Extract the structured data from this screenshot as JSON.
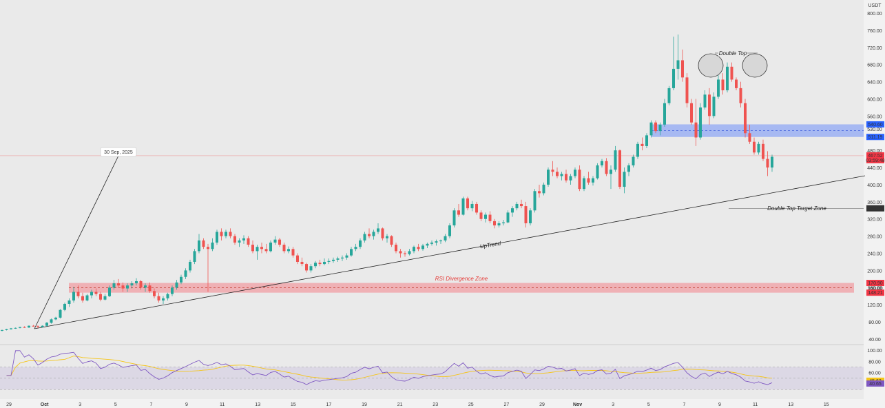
{
  "currency": "USDT",
  "colors": {
    "up": "#26a69a",
    "down": "#ef5350",
    "blue_zone": "#6f8ff7",
    "red_zone": "#f28b91",
    "rsi_line": "#7e57c2",
    "rsi_ma": "#f5c518",
    "background": "#eaeaea"
  },
  "chart_data": [
    {
      "type": "candlestick",
      "ylim": [
        20,
        820
      ],
      "y_ticks": [
        "800.00",
        "760.00",
        "720.00",
        "680.00",
        "640.00",
        "600.00",
        "560.00",
        "530.00",
        "480.00",
        "440.00",
        "400.00",
        "360.00",
        "320.00",
        "280.00",
        "240.00",
        "200.00",
        "160.00",
        "120.00",
        "80.00",
        "40.00"
      ],
      "x_ticks": [
        "29",
        "Oct",
        "3",
        "5",
        "7",
        "9",
        "11",
        "13",
        "15",
        "17",
        "19",
        "21",
        "23",
        "25",
        "27",
        "29",
        "Nov",
        "3",
        "5",
        "7",
        "9",
        "11",
        "13",
        "15"
      ],
      "candles_ohlc": [
        [
          60,
          62,
          58,
          61
        ],
        [
          61,
          64,
          60,
          63
        ],
        [
          63,
          66,
          62,
          65
        ],
        [
          65,
          67,
          64,
          66
        ],
        [
          66,
          69,
          65,
          68
        ],
        [
          68,
          70,
          66,
          67
        ],
        [
          67,
          72,
          66,
          71
        ],
        [
          71,
          73,
          69,
          70
        ],
        [
          70,
          72,
          66,
          68
        ],
        [
          68,
          72,
          67,
          71
        ],
        [
          71,
          80,
          70,
          78
        ],
        [
          78,
          88,
          76,
          86
        ],
        [
          86,
          92,
          84,
          90
        ],
        [
          90,
          110,
          88,
          108
        ],
        [
          108,
          125,
          105,
          122
        ],
        [
          122,
          135,
          115,
          130
        ],
        [
          130,
          162,
          125,
          150
        ],
        [
          150,
          165,
          135,
          140
        ],
        [
          140,
          148,
          125,
          130
        ],
        [
          130,
          145,
          128,
          142
        ],
        [
          142,
          155,
          135,
          150
        ],
        [
          150,
          158,
          140,
          145
        ],
        [
          145,
          150,
          128,
          132
        ],
        [
          132,
          145,
          130,
          140
        ],
        [
          140,
          165,
          138,
          160
        ],
        [
          160,
          178,
          155,
          170
        ],
        [
          170,
          180,
          160,
          165
        ],
        [
          165,
          172,
          150,
          158
        ],
        [
          158,
          170,
          150,
          165
        ],
        [
          165,
          175,
          158,
          170
        ],
        [
          170,
          182,
          165,
          175
        ],
        [
          175,
          178,
          155,
          160
        ],
        [
          160,
          170,
          150,
          165
        ],
        [
          165,
          172,
          148,
          152
        ],
        [
          152,
          158,
          135,
          140
        ],
        [
          140,
          148,
          125,
          130
        ],
        [
          130,
          140,
          122,
          135
        ],
        [
          135,
          148,
          130,
          145
        ],
        [
          145,
          165,
          140,
          160
        ],
        [
          160,
          178,
          155,
          172
        ],
        [
          172,
          190,
          168,
          185
        ],
        [
          185,
          205,
          180,
          200
        ],
        [
          200,
          225,
          195,
          220
        ],
        [
          220,
          250,
          215,
          245
        ],
        [
          245,
          285,
          240,
          270
        ],
        [
          270,
          275,
          250,
          255
        ],
        [
          255,
          262,
          150,
          250
        ],
        [
          250,
          275,
          245,
          265
        ],
        [
          265,
          295,
          260,
          290
        ],
        [
          290,
          298,
          270,
          280
        ],
        [
          280,
          295,
          275,
          290
        ],
        [
          290,
          298,
          275,
          280
        ],
        [
          280,
          285,
          260,
          265
        ],
        [
          265,
          275,
          255,
          270
        ],
        [
          270,
          282,
          262,
          275
        ],
        [
          275,
          280,
          255,
          260
        ],
        [
          260,
          270,
          240,
          245
        ],
        [
          245,
          260,
          225,
          255
        ],
        [
          255,
          265,
          240,
          250
        ],
        [
          250,
          262,
          240,
          245
        ],
        [
          245,
          270,
          242,
          265
        ],
        [
          265,
          280,
          260,
          272
        ],
        [
          272,
          276,
          255,
          260
        ],
        [
          260,
          265,
          240,
          245
        ],
        [
          245,
          256,
          240,
          250
        ],
        [
          250,
          255,
          230,
          235
        ],
        [
          235,
          240,
          215,
          220
        ],
        [
          220,
          230,
          210,
          215
        ],
        [
          215,
          218,
          195,
          200
        ],
        [
          200,
          215,
          195,
          210
        ],
        [
          210,
          222,
          205,
          218
        ],
        [
          218,
          225,
          210,
          215
        ],
        [
          215,
          228,
          212,
          220
        ],
        [
          220,
          228,
          215,
          222
        ],
        [
          222,
          230,
          218,
          225
        ],
        [
          225,
          232,
          220,
          228
        ],
        [
          228,
          235,
          222,
          230
        ],
        [
          230,
          240,
          225,
          235
        ],
        [
          235,
          255,
          232,
          250
        ],
        [
          250,
          262,
          245,
          255
        ],
        [
          255,
          275,
          250,
          270
        ],
        [
          270,
          290,
          265,
          285
        ],
        [
          285,
          298,
          275,
          280
        ],
        [
          280,
          295,
          272,
          290
        ],
        [
          290,
          310,
          285,
          298
        ],
        [
          298,
          300,
          270,
          275
        ],
        [
          275,
          285,
          265,
          280
        ],
        [
          280,
          282,
          255,
          260
        ],
        [
          260,
          265,
          240,
          245
        ],
        [
          245,
          250,
          230,
          240
        ],
        [
          240,
          245,
          232,
          238
        ],
        [
          238,
          250,
          235,
          245
        ],
        [
          245,
          258,
          240,
          255
        ],
        [
          255,
          262,
          245,
          250
        ],
        [
          250,
          262,
          246,
          258
        ],
        [
          258,
          265,
          252,
          262
        ],
        [
          262,
          270,
          258,
          265
        ],
        [
          265,
          272,
          258,
          268
        ],
        [
          268,
          272,
          262,
          270
        ],
        [
          270,
          285,
          266,
          280
        ],
        [
          280,
          310,
          275,
          305
        ],
        [
          305,
          345,
          300,
          340
        ],
        [
          340,
          355,
          325,
          330
        ],
        [
          330,
          372,
          328,
          368
        ],
        [
          368,
          372,
          340,
          345
        ],
        [
          345,
          362,
          338,
          355
        ],
        [
          355,
          360,
          330,
          335
        ],
        [
          335,
          340,
          315,
          320
        ],
        [
          320,
          335,
          312,
          330
        ],
        [
          330,
          338,
          310,
          315
        ],
        [
          315,
          320,
          298,
          305
        ],
        [
          305,
          315,
          300,
          310
        ],
        [
          310,
          318,
          305,
          312
        ],
        [
          312,
          340,
          310,
          335
        ],
        [
          335,
          350,
          325,
          345
        ],
        [
          345,
          360,
          340,
          355
        ],
        [
          355,
          365,
          345,
          350
        ],
        [
          350,
          360,
          300,
          310
        ],
        [
          310,
          345,
          305,
          340
        ],
        [
          340,
          390,
          335,
          385
        ],
        [
          385,
          400,
          370,
          380
        ],
        [
          380,
          405,
          375,
          400
        ],
        [
          400,
          440,
          395,
          435
        ],
        [
          435,
          455,
          420,
          430
        ],
        [
          430,
          440,
          415,
          420
        ],
        [
          420,
          430,
          410,
          425
        ],
        [
          425,
          435,
          405,
          410
        ],
        [
          410,
          425,
          400,
          420
        ],
        [
          420,
          440,
          415,
          435
        ],
        [
          435,
          445,
          385,
          390
        ],
        [
          390,
          420,
          385,
          415
        ],
        [
          415,
          430,
          400,
          405
        ],
        [
          405,
          420,
          398,
          415
        ],
        [
          415,
          450,
          412,
          445
        ],
        [
          445,
          460,
          440,
          455
        ],
        [
          455,
          462,
          420,
          425
        ],
        [
          425,
          445,
          390,
          435
        ],
        [
          435,
          490,
          430,
          480
        ],
        [
          480,
          482,
          390,
          395
        ],
        [
          395,
          440,
          380,
          430
        ],
        [
          430,
          450,
          420,
          445
        ],
        [
          445,
          470,
          440,
          465
        ],
        [
          465,
          500,
          460,
          495
        ],
        [
          495,
          510,
          480,
          490
        ],
        [
          490,
          520,
          485,
          515
        ],
        [
          515,
          550,
          510,
          545
        ],
        [
          545,
          550,
          520,
          525
        ],
        [
          525,
          545,
          515,
          540
        ],
        [
          540,
          600,
          535,
          590
        ],
        [
          590,
          630,
          585,
          625
        ],
        [
          625,
          745,
          620,
          670
        ],
        [
          670,
          750,
          645,
          690
        ],
        [
          690,
          715,
          640,
          650
        ],
        [
          650,
          660,
          580,
          590
        ],
        [
          590,
          600,
          540,
          545
        ],
        [
          545,
          600,
          490,
          510
        ],
        [
          510,
          590,
          505,
          580
        ],
        [
          580,
          620,
          575,
          610
        ],
        [
          610,
          625,
          540,
          560
        ],
        [
          560,
          615,
          555,
          605
        ],
        [
          605,
          655,
          600,
          645
        ],
        [
          645,
          660,
          610,
          620
        ],
        [
          620,
          685,
          615,
          675
        ],
        [
          675,
          685,
          640,
          645
        ],
        [
          645,
          650,
          620,
          625
        ],
        [
          625,
          640,
          580,
          590
        ],
        [
          590,
          600,
          510,
          520
        ],
        [
          520,
          540,
          495,
          500
        ],
        [
          500,
          510,
          470,
          475
        ],
        [
          475,
          500,
          470,
          495
        ],
        [
          495,
          505,
          455,
          460
        ],
        [
          460,
          478,
          420,
          440
        ],
        [
          440,
          470,
          430,
          465
        ]
      ],
      "annotations": {
        "double_top": "Double Top",
        "uptrend": "UpTrend",
        "rsi_divergence_zone": "RSI Divergence Zone",
        "double_top_target_zone": "Double Top Target Zone",
        "date_callout": "30 Sep, 2025"
      },
      "zones": {
        "blue": {
          "top": 540.6,
          "bottom": 511.19
        },
        "red": {
          "top": 170.9,
          "bottom": 148.21
        }
      },
      "price_labels": {
        "blue_top": "540.60",
        "blue_bottom": "511.19",
        "current_price": "467.52",
        "countdown": "03:59:48",
        "target": "344.82",
        "red_top": "170.90",
        "red_mid": "160.00",
        "red_bottom": "148.21"
      },
      "current_price": 467.52,
      "target_price": 344.82
    },
    {
      "type": "line",
      "panel": "RSI",
      "ylim": [
        20,
        105
      ],
      "y_ticks": [
        "100.00",
        "80.00",
        "60.00",
        "40.00"
      ],
      "band": [
        30,
        70
      ],
      "rsi_label": "45.63",
      "ma_label": "40.65",
      "rsi_last": 45.63,
      "rsi_ma_last": 40.65
    }
  ]
}
